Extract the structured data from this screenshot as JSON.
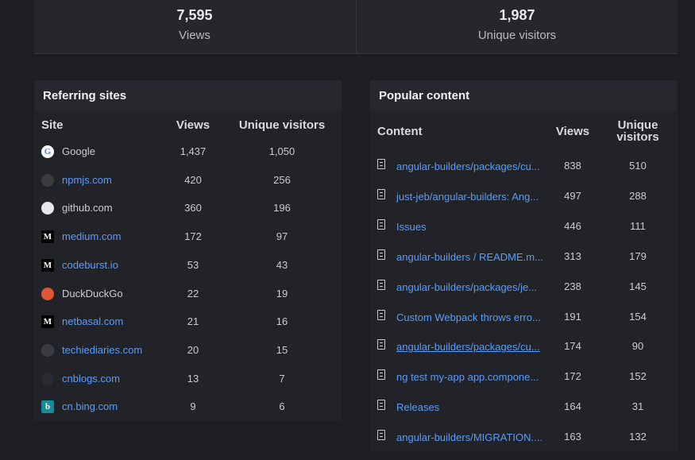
{
  "stats": [
    {
      "value": "7,595",
      "label": "Views"
    },
    {
      "value": "1,987",
      "label": "Unique visitors"
    }
  ],
  "referring": {
    "title": "Referring sites",
    "columns": [
      "Site",
      "Views",
      "Unique visitors"
    ],
    "rows": [
      [
        "Google",
        "1,437",
        "1,050"
      ],
      [
        "npmjs.com",
        "420",
        "256"
      ],
      [
        "github.com",
        "360",
        "196"
      ],
      [
        "medium.com",
        "172",
        "97"
      ],
      [
        "codeburst.io",
        "53",
        "43"
      ],
      [
        "DuckDuckGo",
        "22",
        "19"
      ],
      [
        "netbasal.com",
        "21",
        "16"
      ],
      [
        "techiediaries.com",
        "20",
        "15"
      ],
      [
        "cnblogs.com",
        "13",
        "7"
      ],
      [
        "cn.bing.com",
        "9",
        "6"
      ]
    ]
  },
  "popular": {
    "title": "Popular content",
    "columns": [
      "Content",
      "Views",
      "Unique visitors"
    ],
    "rows": [
      [
        "angular-builders/packages/cu...",
        "838",
        "510"
      ],
      [
        "just-jeb/angular-builders: Ang...",
        "497",
        "288"
      ],
      [
        "Issues",
        "446",
        "111"
      ],
      [
        "angular-builders / README.m...",
        "313",
        "179"
      ],
      [
        "angular-builders/packages/je...",
        "238",
        "145"
      ],
      [
        "Custom Webpack throws erro...",
        "191",
        "154"
      ],
      [
        "angular-builders/packages/cu...",
        "174",
        "90"
      ],
      [
        "ng test my-app app.compone...",
        "172",
        "152"
      ],
      [
        "Releases",
        "164",
        "31"
      ],
      [
        "angular-builders/MIGRATION....",
        "163",
        "132"
      ]
    ]
  }
}
